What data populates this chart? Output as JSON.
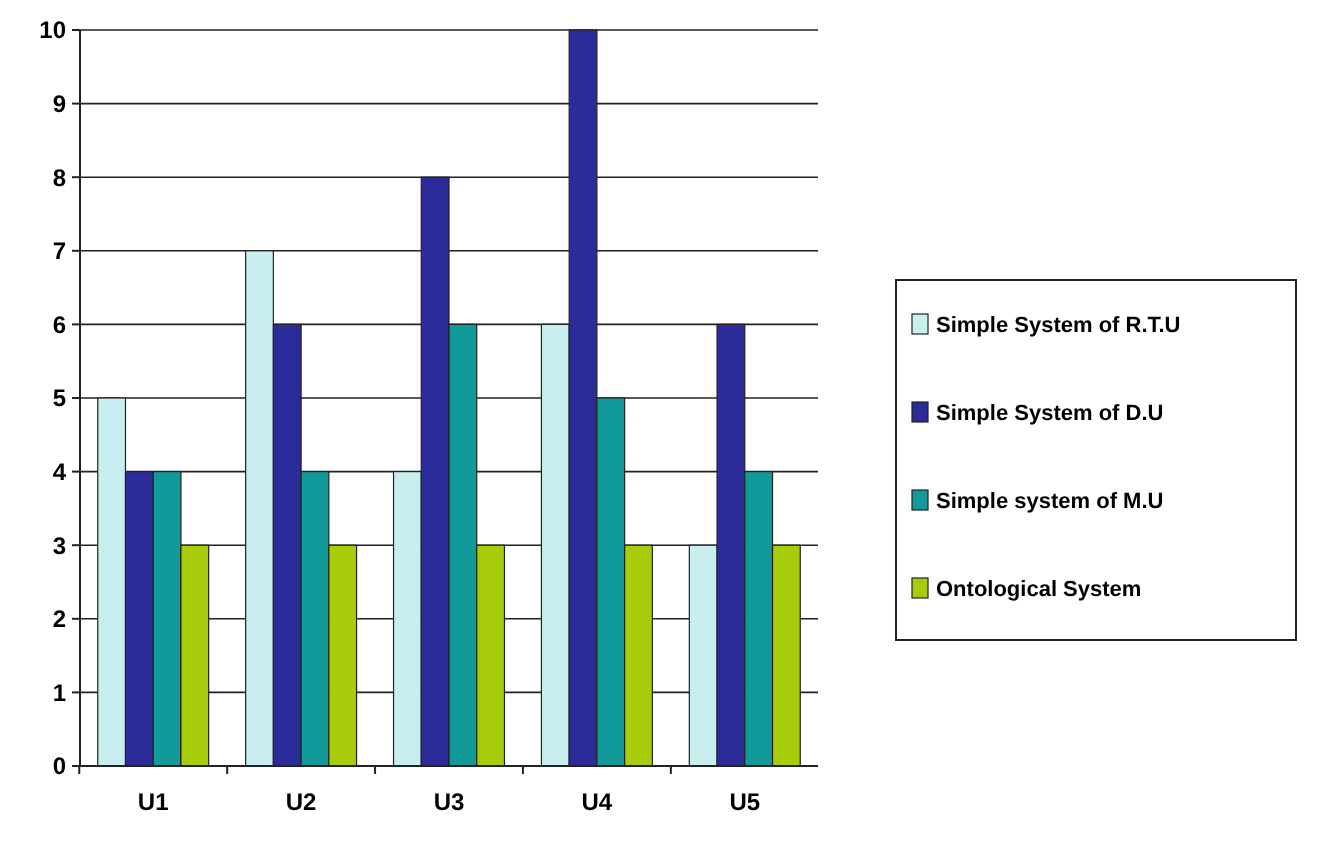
{
  "chart_data": {
    "type": "bar",
    "categories": [
      "U1",
      "U2",
      "U3",
      "U4",
      "U5"
    ],
    "series": [
      {
        "name": "Simple System of R.T.U",
        "color": "#c9eef0",
        "values": [
          5,
          7,
          4,
          6,
          3
        ]
      },
      {
        "name": "Simple System of D.U",
        "color": "#2b2b99",
        "values": [
          4,
          6,
          8,
          10,
          6
        ]
      },
      {
        "name": "Simple system of M.U",
        "color": "#119a99",
        "values": [
          4,
          4,
          6,
          5,
          4
        ]
      },
      {
        "name": "Ontological System",
        "color": "#a6cc0a",
        "values": [
          3,
          3,
          3,
          3,
          3
        ]
      }
    ],
    "ylim": [
      0,
      10
    ],
    "yticks": [
      0,
      1,
      2,
      3,
      4,
      5,
      6,
      7,
      8,
      9,
      10
    ],
    "grid": "y",
    "legend": "right"
  }
}
